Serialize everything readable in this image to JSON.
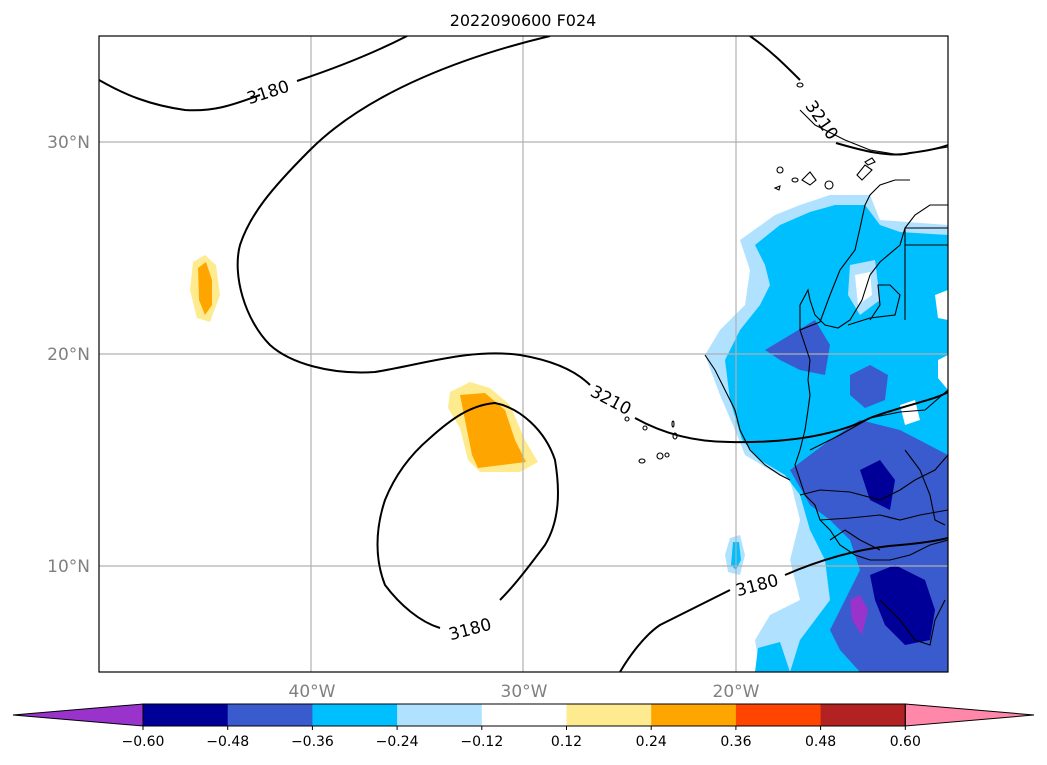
{
  "title": "2022090600 F024",
  "map": {
    "lat_ticks": [
      "30°N",
      "20°N",
      "10°N"
    ],
    "lon_ticks": [
      "40°W",
      "30°W",
      "20°W"
    ],
    "gridlines": true,
    "contour_labels": [
      "3180",
      "3210",
      "3210",
      "3180",
      "3180"
    ]
  },
  "colorbar": {
    "colors": [
      "#9933cc",
      "#000099",
      "#3a5bcd",
      "#00bfff",
      "#b0e2ff",
      "#ffffff",
      "#ffeb8f",
      "#ffa500",
      "#ff4500",
      "#b22222",
      "#ff88aa"
    ],
    "tick_labels": [
      "−0.60",
      "−0.48",
      "−0.36",
      "−0.24",
      "−0.12",
      "0.12",
      "0.24",
      "0.36",
      "0.48",
      "0.60"
    ],
    "extend": "both"
  }
}
